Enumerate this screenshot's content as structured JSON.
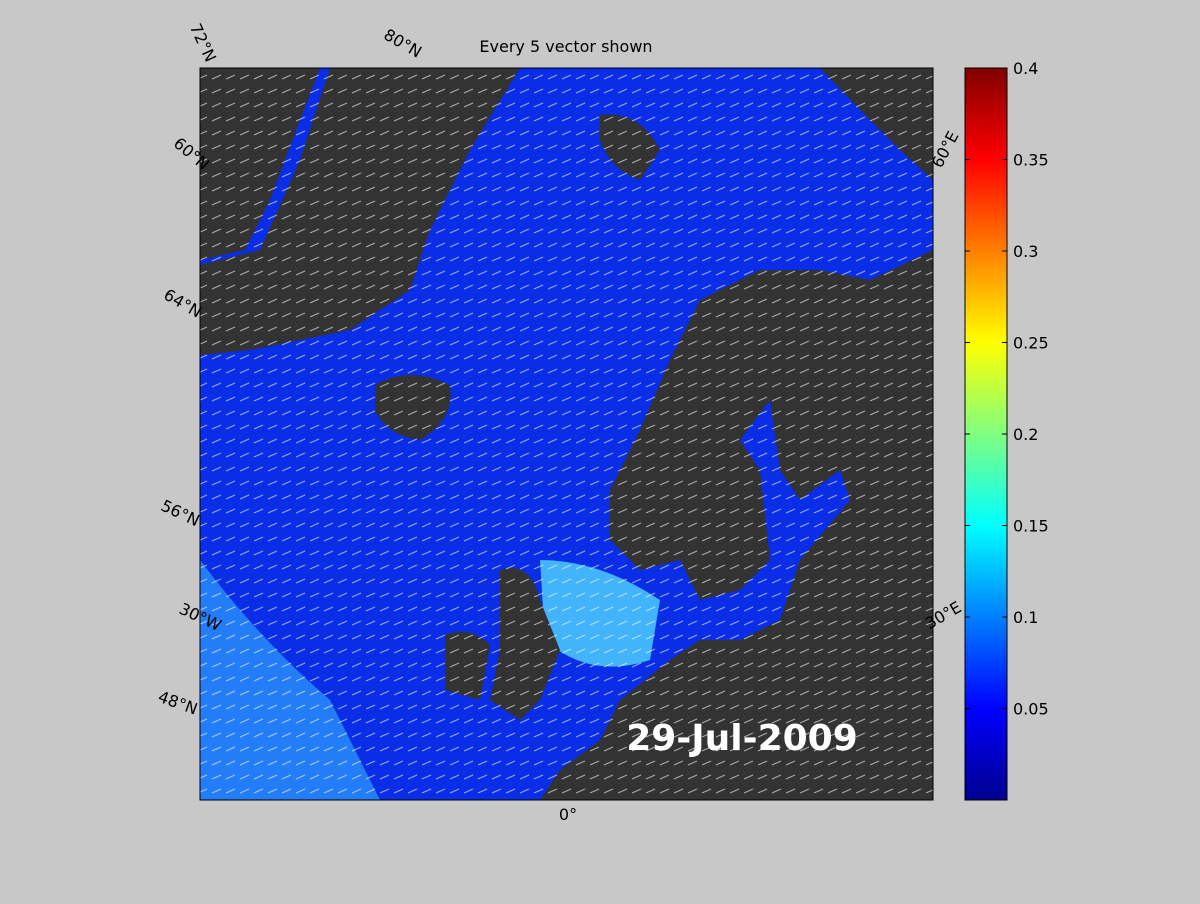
{
  "title": "Every 5 vector shown",
  "date_label": "29-Jul-2009",
  "map_labels": [
    "72°N",
    "80°N",
    "60°N",
    "64°N",
    "56°N",
    "30°W",
    "48°N",
    "0°",
    "60°E",
    "30°E"
  ],
  "colorbar": {
    "lim": [
      0,
      0.4
    ],
    "ticks": [
      0.05,
      0.1,
      0.15,
      0.2,
      0.25,
      0.3,
      0.35,
      0.4
    ]
  }
}
